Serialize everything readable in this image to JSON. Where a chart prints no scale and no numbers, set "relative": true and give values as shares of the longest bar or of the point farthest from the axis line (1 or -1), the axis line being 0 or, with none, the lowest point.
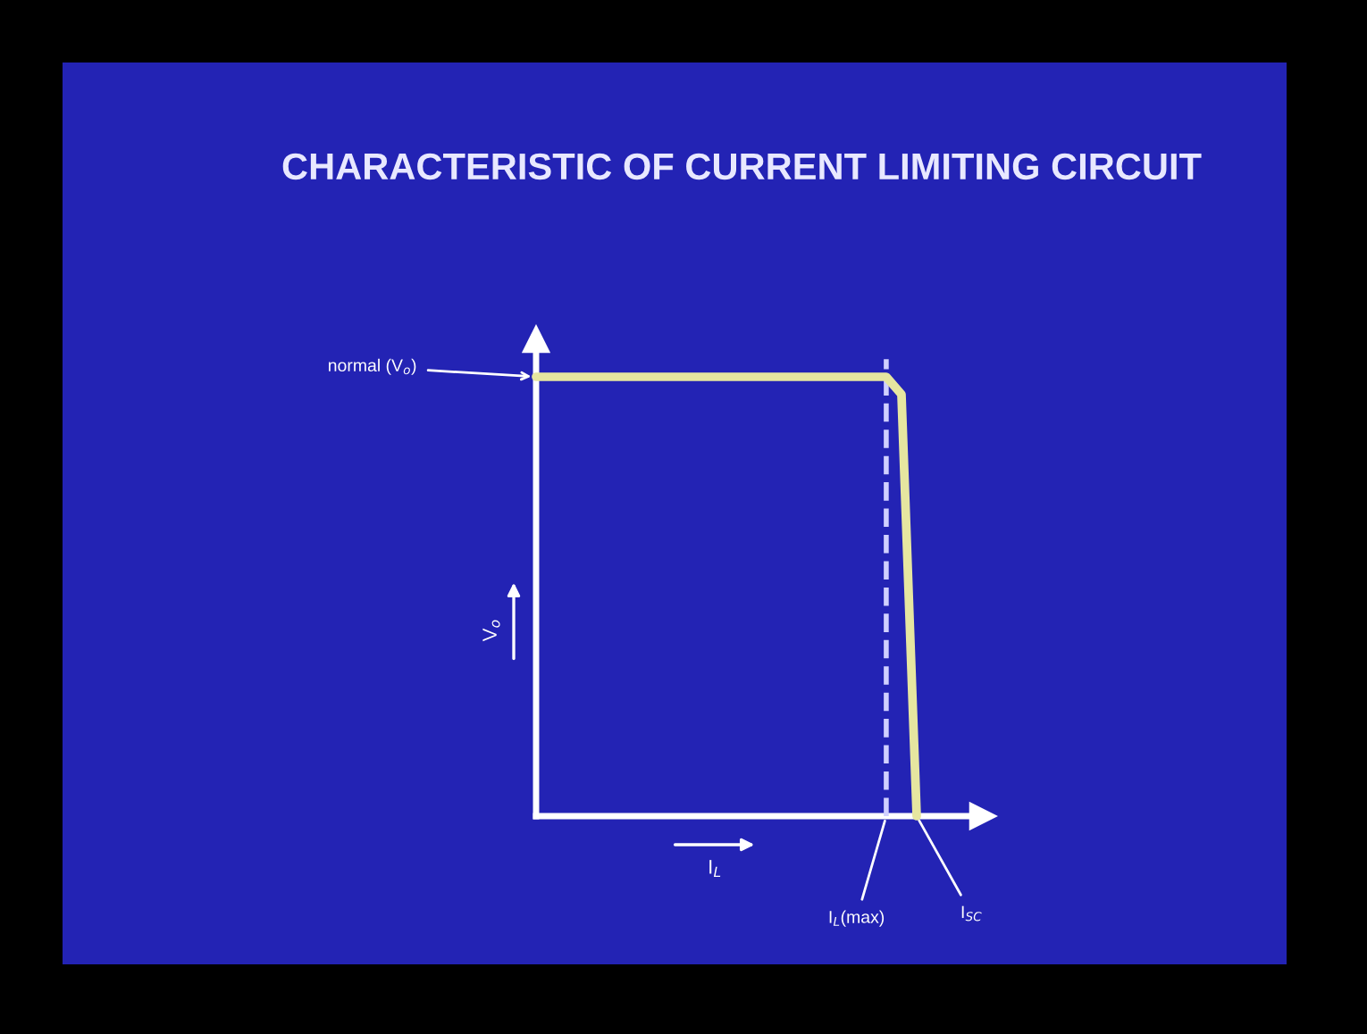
{
  "chart_data": {
    "type": "line",
    "title": "CHARACTERISTIC OF CURRENT LIMITING CIRCUIT",
    "relative": true,
    "categories": [
      null,
      null,
      null,
      null,
      null,
      null,
      null,
      null,
      null,
      null,
      null,
      null,
      null,
      null,
      null,
      null,
      null,
      null,
      null,
      null,
      null,
      null,
      null,
      null,
      null,
      null
    ],
    "series": [
      {
        "color": "#e6e6a0",
        "values": [
          1,
          1,
          1,
          1,
          1,
          1,
          1,
          1,
          1,
          1,
          1,
          1,
          1,
          1,
          1,
          1,
          1,
          1,
          1,
          1,
          1,
          1,
          1,
          1,
          0.96,
          0
        ]
      }
    ],
    "annotations": [
      "normal (V$_{o}$)",
      "V$_{o}$",
      "I$_{L}$",
      "I$_{L}$(max)",
      "I$_{SC}$"
    ],
    "marker": "none",
    "line_style": "solid"
  }
}
